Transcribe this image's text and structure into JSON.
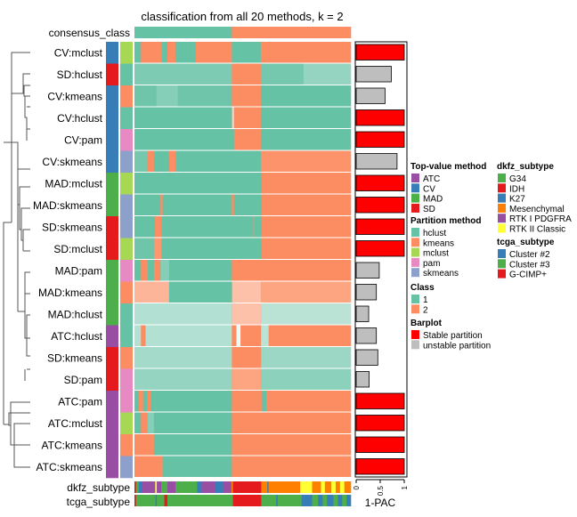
{
  "chart_data": {
    "type": "heatmap",
    "title": "classification from all 20 methods, k = 2",
    "consensus_label": "consensus_class",
    "consensus": [
      [
        0,
        0.45,
        "1"
      ],
      [
        0.45,
        1,
        "2"
      ]
    ],
    "rows": [
      {
        "label": "CV:mclust",
        "top": "CV",
        "method": "mclust",
        "pac": 1.0,
        "stable": true,
        "segs": [
          [
            0,
            0.03,
            "1",
            1
          ],
          [
            0.03,
            0.124,
            "2",
            1
          ],
          [
            0.124,
            0.152,
            "1",
            1
          ],
          [
            0.152,
            0.189,
            "2",
            1
          ],
          [
            0.189,
            0.284,
            "1",
            1
          ],
          [
            0.284,
            0.45,
            "2",
            1
          ],
          [
            0.45,
            0.584,
            "1",
            1
          ],
          [
            0.584,
            1,
            "2",
            1
          ]
        ]
      },
      {
        "label": "SD:hclust",
        "top": "SD",
        "method": "hclust",
        "pac": 0.73,
        "stable": false,
        "segs": [
          [
            0,
            0.45,
            "1",
            0.85
          ],
          [
            0.45,
            0.584,
            "2",
            1
          ],
          [
            0.584,
            0.78,
            "1",
            0.9
          ],
          [
            0.78,
            1,
            "1",
            0.7
          ]
        ]
      },
      {
        "label": "CV:kmeans",
        "top": "CV",
        "method": "kmeans",
        "pac": 0.6,
        "stable": false,
        "segs": [
          [
            0,
            0.1,
            "1",
            0.95
          ],
          [
            0.1,
            0.2,
            "1",
            0.8
          ],
          [
            0.2,
            0.45,
            "1",
            0.95
          ],
          [
            0.45,
            0.584,
            "2",
            1
          ],
          [
            0.584,
            1,
            "1",
            1
          ]
        ]
      },
      {
        "label": "CV:hclust",
        "top": "CV",
        "method": "hclust",
        "pac": 1.0,
        "stable": true,
        "segs": [
          [
            0,
            0.45,
            "1",
            1
          ],
          [
            0.45,
            0.46,
            "2",
            0.4
          ],
          [
            0.46,
            0.584,
            "2",
            1
          ],
          [
            0.584,
            1,
            "1",
            1
          ]
        ]
      },
      {
        "label": "CV:pam",
        "top": "CV",
        "method": "pam",
        "pac": 1.0,
        "stable": true,
        "segs": [
          [
            0,
            0.46,
            "1",
            1
          ],
          [
            0.46,
            0.584,
            "2",
            1
          ],
          [
            0.584,
            1,
            "1",
            1
          ]
        ]
      },
      {
        "label": "CV:skmeans",
        "top": "CV",
        "method": "skmeans",
        "pac": 0.85,
        "stable": false,
        "segs": [
          [
            0,
            0.06,
            "1",
            0.9
          ],
          [
            0.06,
            0.09,
            "2",
            1
          ],
          [
            0.09,
            0.16,
            "1",
            1
          ],
          [
            0.16,
            0.19,
            "2",
            1
          ],
          [
            0.19,
            0.584,
            "1",
            1
          ],
          [
            0.584,
            1,
            "2",
            0.95
          ]
        ]
      },
      {
        "label": "MAD:mclust",
        "top": "MAD",
        "method": "mclust",
        "pac": 1.0,
        "stable": true,
        "segs": [
          [
            0,
            0.588,
            "1",
            1
          ],
          [
            0.588,
            1,
            "2",
            1
          ]
        ]
      },
      {
        "label": "MAD:skmeans",
        "top": "MAD",
        "method": "skmeans",
        "pac": 1.0,
        "stable": true,
        "segs": [
          [
            0,
            0.12,
            "1",
            1
          ],
          [
            0.12,
            0.13,
            "2",
            1
          ],
          [
            0.13,
            0.45,
            "1",
            1
          ],
          [
            0.45,
            0.46,
            "2",
            1
          ],
          [
            0.46,
            0.588,
            "1",
            1
          ],
          [
            0.588,
            1,
            "2",
            1
          ]
        ]
      },
      {
        "label": "SD:skmeans",
        "top": "SD",
        "method": "skmeans",
        "pac": 1.0,
        "stable": true,
        "segs": [
          [
            0,
            0.095,
            "1",
            1
          ],
          [
            0.095,
            0.124,
            "2",
            1
          ],
          [
            0.124,
            0.55,
            "1",
            1
          ],
          [
            0.55,
            0.555,
            "2",
            1
          ],
          [
            0.555,
            0.588,
            "1",
            1
          ],
          [
            0.588,
            1,
            "2",
            1
          ]
        ]
      },
      {
        "label": "SD:mclust",
        "top": "SD",
        "method": "mclust",
        "pac": 1.0,
        "stable": true,
        "segs": [
          [
            0,
            0.09,
            "1",
            0.95
          ],
          [
            0.09,
            0.124,
            "2",
            0.9
          ],
          [
            0.124,
            0.588,
            "1",
            1
          ],
          [
            0.588,
            1,
            "2",
            1
          ]
        ]
      },
      {
        "label": "MAD:pam",
        "top": "MAD",
        "method": "pam",
        "pac": 0.48,
        "stable": false,
        "segs": [
          [
            0,
            0.03,
            "1",
            1
          ],
          [
            0.03,
            0.06,
            "2",
            1
          ],
          [
            0.06,
            0.09,
            "1",
            1
          ],
          [
            0.09,
            0.12,
            "2",
            1
          ],
          [
            0.12,
            0.16,
            "1",
            0.8
          ],
          [
            0.16,
            0.45,
            "1",
            1
          ],
          [
            0.45,
            1,
            "2",
            1
          ]
        ]
      },
      {
        "label": "MAD:kmeans",
        "top": "MAD",
        "method": "kmeans",
        "pac": 0.42,
        "stable": false,
        "segs": [
          [
            0,
            0.16,
            "2",
            0.65
          ],
          [
            0.16,
            0.45,
            "1",
            1
          ],
          [
            0.45,
            0.584,
            "2",
            0.55
          ],
          [
            0.584,
            1,
            "2",
            0.8
          ]
        ]
      },
      {
        "label": "MAD:hclust",
        "top": "MAD",
        "method": "hclust",
        "pac": 0.26,
        "stable": false,
        "segs": [
          [
            0,
            0.45,
            "1",
            0.5
          ],
          [
            0.45,
            0.584,
            "2",
            0.55
          ],
          [
            0.584,
            1,
            "1",
            0.45
          ]
        ]
      },
      {
        "label": "ATC:hclust",
        "top": "ATC",
        "method": "hclust",
        "pac": 0.42,
        "stable": false,
        "segs": [
          [
            0,
            0.03,
            "1",
            0.5
          ],
          [
            0.03,
            0.05,
            "2",
            1
          ],
          [
            0.05,
            0.45,
            "1",
            0.5
          ],
          [
            0.45,
            0.47,
            "2",
            1
          ],
          [
            0.47,
            0.49,
            "1",
            0.1
          ],
          [
            0.49,
            0.584,
            "2",
            1
          ],
          [
            0.584,
            0.62,
            "1",
            0.45
          ],
          [
            0.62,
            1,
            "2",
            1
          ]
        ]
      },
      {
        "label": "SD:kmeans",
        "top": "SD",
        "method": "kmeans",
        "pac": 0.45,
        "stable": false,
        "segs": [
          [
            0,
            0.45,
            "1",
            0.6
          ],
          [
            0.45,
            0.584,
            "2",
            1
          ],
          [
            0.584,
            1,
            "1",
            0.65
          ]
        ]
      },
      {
        "label": "SD:pam",
        "top": "SD",
        "method": "pam",
        "pac": 0.27,
        "stable": false,
        "segs": [
          [
            0,
            0.45,
            "1",
            0.7
          ],
          [
            0.45,
            0.584,
            "2",
            0.8
          ],
          [
            0.584,
            1,
            "1",
            0.75
          ]
        ]
      },
      {
        "label": "ATC:pam",
        "top": "ATC",
        "method": "pam",
        "pac": 1.0,
        "stable": true,
        "segs": [
          [
            0,
            0.02,
            "1",
            1
          ],
          [
            0.02,
            0.04,
            "2",
            1
          ],
          [
            0.04,
            0.06,
            "1",
            1
          ],
          [
            0.06,
            0.075,
            "2",
            1
          ],
          [
            0.075,
            0.45,
            "1",
            1
          ],
          [
            0.45,
            0.59,
            "2",
            1
          ],
          [
            0.59,
            0.61,
            "1",
            1
          ],
          [
            0.61,
            1,
            "2",
            1
          ]
        ]
      },
      {
        "label": "ATC:mclust",
        "top": "ATC",
        "method": "mclust",
        "pac": 1.0,
        "stable": true,
        "segs": [
          [
            0,
            0.03,
            "1",
            1
          ],
          [
            0.03,
            0.06,
            "2",
            1
          ],
          [
            0.06,
            0.09,
            "1",
            0.8
          ],
          [
            0.09,
            0.45,
            "1",
            1
          ],
          [
            0.45,
            1,
            "2",
            1
          ]
        ]
      },
      {
        "label": "ATC:kmeans",
        "top": "ATC",
        "method": "kmeans",
        "pac": 1.0,
        "stable": true,
        "segs": [
          [
            0,
            0.09,
            "2",
            1
          ],
          [
            0.09,
            0.45,
            "1",
            1
          ],
          [
            0.45,
            1,
            "2",
            1
          ]
        ]
      },
      {
        "label": "ATC:skmeans",
        "top": "ATC",
        "method": "skmeans",
        "pac": 1.0,
        "stable": true,
        "segs": [
          [
            0,
            0.13,
            "2",
            1
          ],
          [
            0.13,
            0.45,
            "1",
            1
          ],
          [
            0.45,
            1,
            "2",
            1
          ]
        ]
      }
    ],
    "dkfz_label": "dkfz_subtype",
    "dkfz": [
      [
        0,
        0.007,
        "IDH"
      ],
      [
        0.007,
        0.02,
        "G34"
      ],
      [
        0.02,
        0.034,
        "K27"
      ],
      [
        0.034,
        0.096,
        "RTK I PDGFRA"
      ],
      [
        0.096,
        0.103,
        "RTK II Classic"
      ],
      [
        0.103,
        0.124,
        "RTK I PDGFRA"
      ],
      [
        0.124,
        0.152,
        "G34"
      ],
      [
        0.152,
        0.19,
        "RTK I PDGFRA"
      ],
      [
        0.19,
        0.29,
        "G34"
      ],
      [
        0.29,
        0.31,
        "K27"
      ],
      [
        0.31,
        0.372,
        "RTK I PDGFRA"
      ],
      [
        0.372,
        0.41,
        "K27"
      ],
      [
        0.41,
        0.448,
        "RTK I PDGFRA"
      ],
      [
        0.448,
        0.455,
        "Mesenchymal"
      ],
      [
        0.455,
        0.586,
        "IDH"
      ],
      [
        0.586,
        0.614,
        "Mesenchymal"
      ],
      [
        0.614,
        0.62,
        "K27"
      ],
      [
        0.62,
        0.766,
        "Mesenchymal"
      ],
      [
        0.766,
        0.821,
        "RTK II Classic"
      ],
      [
        0.821,
        0.862,
        "Mesenchymal"
      ],
      [
        0.862,
        0.88,
        "RTK II Classic"
      ],
      [
        0.88,
        0.91,
        "Mesenchymal"
      ],
      [
        0.91,
        0.93,
        "RTK II Classic"
      ],
      [
        0.93,
        0.95,
        "Mesenchymal"
      ],
      [
        0.95,
        0.97,
        "RTK II Classic"
      ],
      [
        0.97,
        1,
        "Mesenchymal"
      ]
    ],
    "tcga_label": "tcga_subtype",
    "tcga": [
      [
        0,
        0.007,
        "G-CIMP+"
      ],
      [
        0.007,
        0.097,
        "Cluster #3"
      ],
      [
        0.097,
        0.103,
        "Cluster #2"
      ],
      [
        0.103,
        0.138,
        "Cluster #3"
      ],
      [
        0.138,
        0.152,
        "G-CIMP+"
      ],
      [
        0.152,
        0.455,
        "Cluster #3"
      ],
      [
        0.455,
        0.586,
        "G-CIMP+"
      ],
      [
        0.586,
        0.655,
        "Cluster #3"
      ],
      [
        0.655,
        0.662,
        "Cluster #2"
      ],
      [
        0.662,
        0.772,
        "Cluster #3"
      ],
      [
        0.772,
        0.821,
        "Cluster #2"
      ],
      [
        0.821,
        0.848,
        "Cluster #3"
      ],
      [
        0.848,
        0.87,
        "Cluster #2"
      ],
      [
        0.87,
        0.89,
        "Cluster #3"
      ],
      [
        0.89,
        0.92,
        "Cluster #2"
      ],
      [
        0.92,
        0.94,
        "Cluster #3"
      ],
      [
        0.94,
        0.96,
        "Cluster #2"
      ],
      [
        0.96,
        0.98,
        "Cluster #3"
      ],
      [
        0.98,
        1,
        "Cluster #2"
      ]
    ],
    "barplot": {
      "xlabel": "1-PAC",
      "ticks": [
        "0",
        "0.5",
        "1"
      ],
      "xlim": [
        0,
        1
      ]
    },
    "legends": {
      "top_value": {
        "title": "Top-value method",
        "items": [
          [
            "ATC",
            "#984EA3"
          ],
          [
            "CV",
            "#377EB8"
          ],
          [
            "MAD",
            "#4DAF4A"
          ],
          [
            "SD",
            "#E41A1C"
          ]
        ]
      },
      "partition": {
        "title": "Partition method",
        "items": [
          [
            "hclust",
            "#66C2A5"
          ],
          [
            "kmeans",
            "#FC8D62"
          ],
          [
            "mclust",
            "#A6D854"
          ],
          [
            "pam",
            "#E78AC3"
          ],
          [
            "skmeans",
            "#8DA0CB"
          ]
        ]
      },
      "class": {
        "title": "Class",
        "items": [
          [
            "1",
            "#66C2A5"
          ],
          [
            "2",
            "#FC8D62"
          ]
        ]
      },
      "barplot": {
        "title": "Barplot",
        "items": [
          [
            "Stable partition",
            "#FF0000"
          ],
          [
            "unstable partition",
            "#BEBEBE"
          ]
        ]
      },
      "dkfz": {
        "title": "dkfz_subtype",
        "items": [
          [
            "G34",
            "#4DAF4A"
          ],
          [
            "IDH",
            "#E41A1C"
          ],
          [
            "K27",
            "#377EB8"
          ],
          [
            "Mesenchymal",
            "#FF7F00"
          ],
          [
            "RTK I PDGFRA",
            "#984EA3"
          ],
          [
            "RTK II Classic",
            "#FFFF33"
          ]
        ]
      },
      "tcga": {
        "title": "tcga_subtype",
        "items": [
          [
            "Cluster #2",
            "#377EB8"
          ],
          [
            "Cluster #3",
            "#4DAF4A"
          ],
          [
            "G-CIMP+",
            "#E41A1C"
          ]
        ]
      }
    }
  }
}
